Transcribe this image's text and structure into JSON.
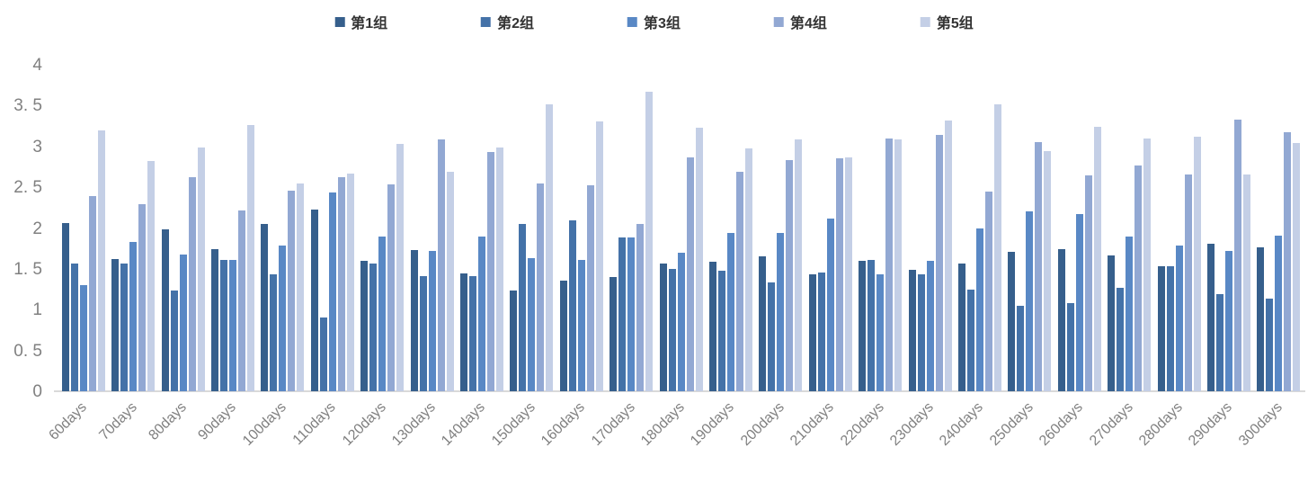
{
  "chart_data": {
    "type": "bar",
    "title": "",
    "xlabel": "",
    "ylabel": "",
    "grid": false,
    "legend_position": "top",
    "ylim": [
      0,
      4
    ],
    "yticks": [
      {
        "label": "0",
        "value": 0
      },
      {
        "label": "0. 5",
        "value": 0.5
      },
      {
        "label": "1",
        "value": 1
      },
      {
        "label": "1. 5",
        "value": 1.5
      },
      {
        "label": "2",
        "value": 2
      },
      {
        "label": "2. 5",
        "value": 2.5
      },
      {
        "label": "3",
        "value": 3
      },
      {
        "label": "3. 5",
        "value": 3.5
      },
      {
        "label": "4",
        "value": 4
      }
    ],
    "categories": [
      "60days",
      "70days",
      "80days",
      "90days",
      "100days",
      "110days",
      "120days",
      "130days",
      "140days",
      "150days",
      "160days",
      "170days",
      "180days",
      "190days",
      "200days",
      "210days",
      "220days",
      "230days",
      "240days",
      "250days",
      "260days",
      "270days",
      "280days",
      "290days",
      "300days"
    ],
    "series": [
      {
        "name": "第1组",
        "color": "#365F8C",
        "values": [
          2.06,
          1.62,
          1.98,
          1.74,
          2.05,
          2.23,
          1.6,
          1.73,
          1.44,
          1.23,
          1.35,
          1.4,
          1.57,
          1.59,
          1.65,
          1.43,
          1.6,
          1.49,
          1.56,
          1.71,
          1.74,
          1.66,
          1.53,
          1.81,
          1.76
        ]
      },
      {
        "name": "第2组",
        "color": "#4472A8",
        "values": [
          1.56,
          1.57,
          1.23,
          1.61,
          1.43,
          0.9,
          1.56,
          1.41,
          1.41,
          2.05,
          2.09,
          1.88,
          1.5,
          1.48,
          1.33,
          1.46,
          1.61,
          1.43,
          1.25,
          1.05,
          1.08,
          1.27,
          1.53,
          1.19,
          1.13
        ]
      },
      {
        "name": "第3组",
        "color": "#5988C5",
        "values": [
          1.3,
          1.83,
          1.68,
          1.61,
          1.79,
          2.43,
          1.9,
          1.72,
          1.89,
          1.63,
          1.61,
          1.88,
          1.7,
          1.94,
          1.94,
          2.12,
          1.43,
          1.6,
          2.0,
          2.2,
          2.17,
          1.89,
          1.78,
          1.72,
          1.91
        ]
      },
      {
        "name": "第4组",
        "color": "#92A8D3",
        "values": [
          2.39,
          2.29,
          2.62,
          2.22,
          2.46,
          2.62,
          2.53,
          3.08,
          2.93,
          2.55,
          2.52,
          2.05,
          2.86,
          2.69,
          2.83,
          2.85,
          3.1,
          3.14,
          2.45,
          3.05,
          2.64,
          2.77,
          2.66,
          3.33,
          3.17
        ]
      },
      {
        "name": "第5组",
        "color": "#C4CFE6",
        "values": [
          3.2,
          2.82,
          2.99,
          3.26,
          2.55,
          2.67,
          3.03,
          2.69,
          2.99,
          3.52,
          3.31,
          3.67,
          3.23,
          2.98,
          3.09,
          2.87,
          3.08,
          3.32,
          3.52,
          2.94,
          3.24,
          3.1,
          3.12,
          2.66,
          3.04
        ]
      }
    ],
    "axis_color": "#d9d9d9",
    "tick_label_color": "#808080",
    "legend_text_color": "#333333"
  }
}
